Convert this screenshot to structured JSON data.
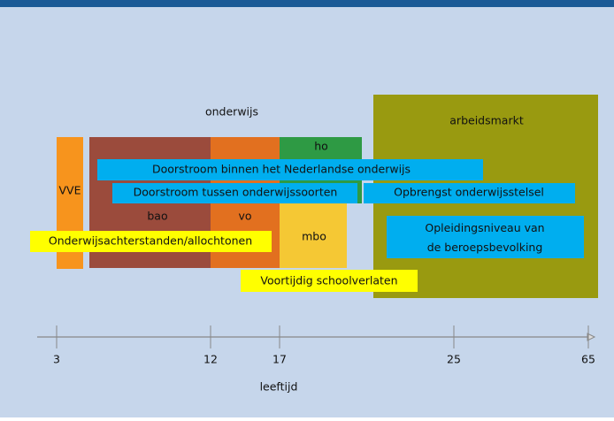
{
  "diagram": {
    "sections": {
      "education": "onderwijs",
      "labour_market": "arbeidsmarkt"
    },
    "blocks": [
      "VVE",
      "bao",
      "vo",
      "ho",
      "mbo"
    ],
    "flows": [
      "Doorstroom binnen het Nederlandse onderwijs",
      "Doorstroom tussen onderwijssoorten",
      "Opbrengst onderwijsstelsel",
      "Opleidingsniveau van de beroepsbevolking"
    ],
    "issues": [
      "Onderwijsachterstanden/allochtonen",
      "Voortijdig schoolverlaten"
    ],
    "axis": {
      "label": "leeftijd",
      "ticks": [
        3,
        12,
        17,
        25,
        65
      ]
    }
  }
}
